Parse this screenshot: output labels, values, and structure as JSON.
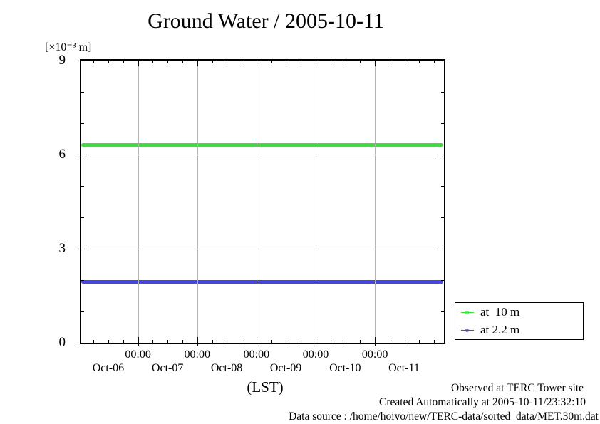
{
  "chart_data": {
    "type": "line",
    "title": "Ground Water / 2005-10-11",
    "y_axis_unit": "[×10⁻³ m]",
    "xlabel": "(LST)",
    "ylim": [
      0,
      9
    ],
    "y_major_ticks": [
      9,
      6,
      3,
      0
    ],
    "y_minor_ticks": [
      1,
      2,
      4,
      5,
      7,
      8
    ],
    "y_gridline_values": [
      3,
      6
    ],
    "grid": true,
    "legend_position": "outside bottom-right",
    "x_axis": {
      "major_tick_labels": [
        "00:00",
        "00:00",
        "00:00",
        "00:00",
        "00:00"
      ],
      "major_tick_positions_pct": [
        15.65,
        31.98,
        48.31,
        64.64,
        80.97
      ],
      "day_labels": [
        "Oct-06",
        "Oct-07",
        "Oct-08",
        "Oct-09",
        "Oct-10",
        "Oct-11"
      ],
      "day_label_positions_pct": [
        7.45,
        23.8,
        40.1,
        56.4,
        72.75,
        89.0
      ],
      "minor_tick_start_pct": -0.68,
      "minor_tick_step_pct": 4.0825
    },
    "series": [
      {
        "name": "at  10 m",
        "color": "#3ede3e",
        "value": 6.3
      },
      {
        "name": "at 2.2 m",
        "color": "#4646d8",
        "value": 1.95
      }
    ]
  },
  "footer": {
    "note_lines": [
      "Observed at TERC Tower site",
      "Created Automatically at 2005-10-11/23:32:10",
      "Data source : /home/hoivo/new/TERC-data/sorted  data/MET.30m.dat"
    ]
  },
  "colors": {
    "grid": "#b3b3b3",
    "axis": "#000000",
    "series_at_10m": "#3ede3e",
    "series_at_2_2m": "#4646d8"
  }
}
